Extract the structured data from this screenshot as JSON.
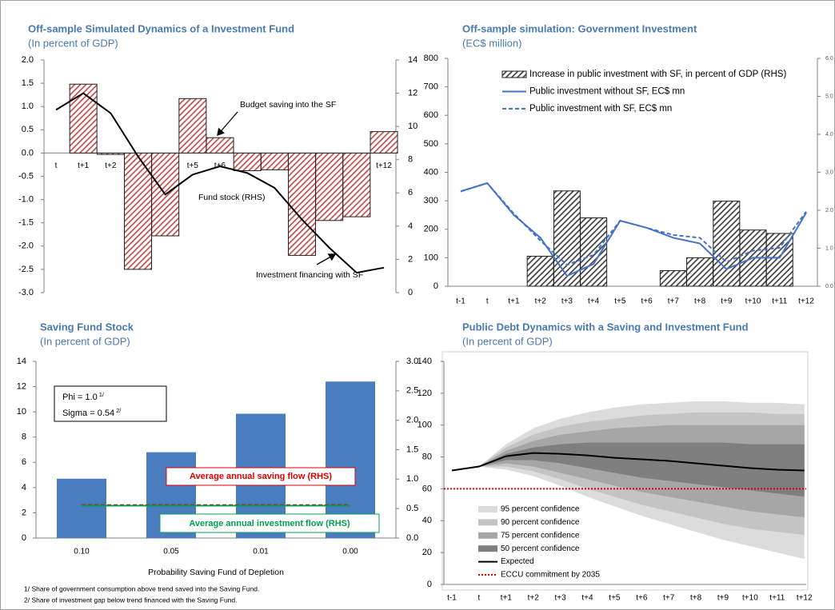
{
  "chart_data": [
    {
      "type": "combo",
      "title": "Off-sample Simulated Dynamics of a Investment Fund",
      "subtitle": "(In percent of GDP)",
      "categories": [
        "t",
        "t+1",
        "t+2",
        "t+3",
        "t+4",
        "t+5",
        "t+6",
        "t+7",
        "t+8",
        "t+9",
        "t+10",
        "t+11",
        "t+12"
      ],
      "series": [
        {
          "name": "Budget saving into the SF",
          "kind": "bar",
          "color": "#c0504d",
          "hatch": true,
          "values": [
            null,
            1.48,
            -0.03,
            -2.5,
            -1.78,
            1.17,
            0.33,
            -0.38,
            -0.36,
            -2.2,
            -1.45,
            -1.37,
            0.46
          ]
        },
        {
          "name": "Fund stock (RHS)",
          "kind": "line",
          "axis": "y2",
          "color": "#000000",
          "values": [
            11,
            12,
            10.8,
            8.2,
            5.9,
            7.1,
            7.6,
            7.2,
            6.3,
            4.4,
            2.7,
            1.2,
            1.5
          ]
        }
      ],
      "annotations": [
        "Investment financing with SF"
      ],
      "legend": false,
      "ylim": [
        -3,
        2
      ],
      "yticks": [
        {
          "value": 2,
          "label": "2.0"
        },
        {
          "value": 1.5,
          "label": "1.5"
        },
        {
          "value": 1,
          "label": "1.0"
        },
        {
          "value": 0.5,
          "label": "0.5"
        },
        {
          "value": 0,
          "label": "0.0"
        },
        {
          "value": -0.5,
          "label": "-0.5"
        },
        {
          "value": -1,
          "label": "-1.0"
        },
        {
          "value": -1.5,
          "label": "-1.5"
        },
        {
          "value": -2,
          "label": "-2.0"
        },
        {
          "value": -2.5,
          "label": "-2.5"
        },
        {
          "value": -3,
          "label": "-3.0"
        }
      ],
      "y2lim": [
        0,
        14
      ],
      "y2ticks": [
        0,
        2,
        4,
        6,
        8,
        10,
        12,
        14
      ]
    },
    {
      "type": "combo",
      "title": "Off-sample simulation: Government Investment",
      "subtitle": "(EC$ million)",
      "categories": [
        "t-1",
        "t",
        "t+1",
        "t+2",
        "t+3",
        "t+4",
        "t+5",
        "t+6",
        "t+7",
        "t+8",
        "t+9",
        "t+10",
        "t+11",
        "t+12"
      ],
      "series": [
        {
          "name": "Increase in public investment with SF, in percent of GDP (RHS)",
          "kind": "bar",
          "axis": "y2",
          "color": "#404040",
          "hatch": true,
          "values": [
            null,
            null,
            null,
            0.79,
            2.51,
            1.8,
            null,
            null,
            0.41,
            0.75,
            2.24,
            1.48,
            1.39,
            null
          ]
        },
        {
          "name": "Public investment without SF, EC$ mn",
          "kind": "line",
          "color": "#4472c4",
          "values": [
            333,
            362,
            250,
            170,
            36,
            78,
            230,
            205,
            170,
            150,
            60,
            100,
            100,
            258
          ]
        },
        {
          "name": "Public investment with SF, EC$ mn",
          "kind": "line",
          "color": "#4472c4",
          "dash": true,
          "values": [
            333,
            362,
            255,
            160,
            75,
            110,
            230,
            205,
            180,
            170,
            85,
            125,
            135,
            262
          ]
        }
      ],
      "legend": "upper right",
      "ylim": [
        0,
        800
      ],
      "yticks": [
        0,
        100,
        200,
        300,
        400,
        500,
        600,
        700,
        800
      ],
      "y2lim": [
        0,
        6
      ],
      "y2ticks": [
        {
          "value": 0,
          "label": "0.0"
        },
        {
          "value": 1,
          "label": "1.0"
        },
        {
          "value": 2,
          "label": "2.0"
        },
        {
          "value": 3,
          "label": "3.0"
        },
        {
          "value": 4,
          "label": "4.0"
        },
        {
          "value": 5,
          "label": "5.0"
        },
        {
          "value": 6,
          "label": "6.0"
        }
      ]
    },
    {
      "type": "combo",
      "title": "Saving Fund Stock",
      "subtitle": "(In percent of GDP)",
      "categories": [
        "0.10",
        "0.05",
        "0.01",
        "0.00"
      ],
      "x_label": "Probability Saving Fund of Depletion",
      "series": [
        {
          "kind": "bar",
          "color": "#4a7cc0",
          "values": [
            4.7,
            6.8,
            9.85,
            12.4
          ]
        },
        {
          "name": "Average annual saving flow (RHS)",
          "kind": "line",
          "axis": "y2",
          "color": "#e00000",
          "dash": true,
          "values": [
            0.56,
            0.56,
            0.56,
            0.56
          ]
        },
        {
          "name": "Average annual investment flow (RHS)",
          "kind": "line",
          "axis": "y2",
          "color": "#00a050",
          "values": [
            0.55,
            0.55,
            0.55,
            0.55
          ]
        }
      ],
      "legend": false,
      "text_box": [
        {
          "text": "Phi = 1.0",
          "ref": "1/"
        },
        {
          "text": "Sigma = 0.54",
          "ref": "2/"
        }
      ],
      "footnotes": [
        "1/ Share of government consumption above trend saved into the Saving Fund.",
        "2/ Share of investment gap below trend financed with the Saving Fund."
      ],
      "ylim": [
        0,
        14
      ],
      "yticks": [
        0,
        2,
        4,
        6,
        8,
        10,
        12,
        14
      ],
      "y2lim": [
        0,
        3
      ],
      "y2ticks": [
        {
          "value": 0,
          "label": "0.0"
        },
        {
          "value": 0.5,
          "label": "0.5"
        },
        {
          "value": 1,
          "label": "1.0"
        },
        {
          "value": 1.5,
          "label": "1.5"
        },
        {
          "value": 2,
          "label": "2.0"
        },
        {
          "value": 2.5,
          "label": "2.5"
        },
        {
          "value": 3,
          "label": "3.0"
        }
      ]
    },
    {
      "type": "fan",
      "title": "Public Debt Dynamics with a Saving and Investment Fund",
      "subtitle": "(In percent of GDP)",
      "categories": [
        "t-1",
        "t",
        "t+1",
        "t+2",
        "t+3",
        "t+4",
        "t+5",
        "t+6",
        "t+7",
        "t+8",
        "t+9",
        "t+10",
        "t+11",
        "t+12"
      ],
      "bands": [
        {
          "name": "95 percent confidence",
          "color": "#dcdcdc",
          "upper": [
            null,
            74,
            88,
            98,
            104,
            108,
            111,
            113,
            114,
            115,
            115,
            114,
            114,
            113
          ],
          "lower": [
            null,
            74,
            72,
            68,
            62,
            55,
            49,
            43,
            38,
            33,
            28,
            24,
            20,
            16
          ]
        },
        {
          "name": "90 percent confidence",
          "color": "#c4c4c4",
          "upper": [
            null,
            74,
            86,
            94,
            99,
            102,
            104,
            106,
            107,
            108,
            108,
            108,
            107,
            107
          ],
          "lower": [
            null,
            74,
            74,
            71,
            66,
            60,
            55,
            50,
            46,
            42,
            38,
            35,
            33,
            31
          ]
        },
        {
          "name": "75 percent confidence",
          "color": "#a6a6a6",
          "upper": [
            null,
            74,
            84,
            90,
            94,
            96,
            98,
            99,
            100,
            100,
            100,
            100,
            100,
            100
          ],
          "lower": [
            null,
            74,
            76,
            74,
            70,
            66,
            62,
            58,
            55,
            52,
            49,
            46,
            44,
            42
          ]
        },
        {
          "name": "50 percent confidence",
          "color": "#7f7f7f",
          "upper": [
            null,
            74,
            82,
            86,
            88,
            89,
            89,
            89,
            89,
            89,
            89,
            88,
            88,
            88
          ],
          "lower": [
            null,
            74,
            78,
            78,
            76,
            73,
            70,
            67,
            65,
            63,
            61,
            59,
            57,
            55
          ]
        }
      ],
      "series": [
        {
          "name": "Expected",
          "kind": "line",
          "color": "#000000",
          "values": [
            71.5,
            74,
            80.5,
            82.5,
            82,
            81,
            79.5,
            78.5,
            77.5,
            76,
            74.5,
            73,
            72,
            71.5
          ]
        }
      ],
      "reference": {
        "name": "ECCU commitment by 2035",
        "value": 60,
        "color": "#e00000"
      },
      "legend": "lower left",
      "ylim": [
        0,
        140
      ],
      "yticks": [
        0,
        20,
        40,
        60,
        80,
        100,
        120,
        140
      ]
    }
  ]
}
